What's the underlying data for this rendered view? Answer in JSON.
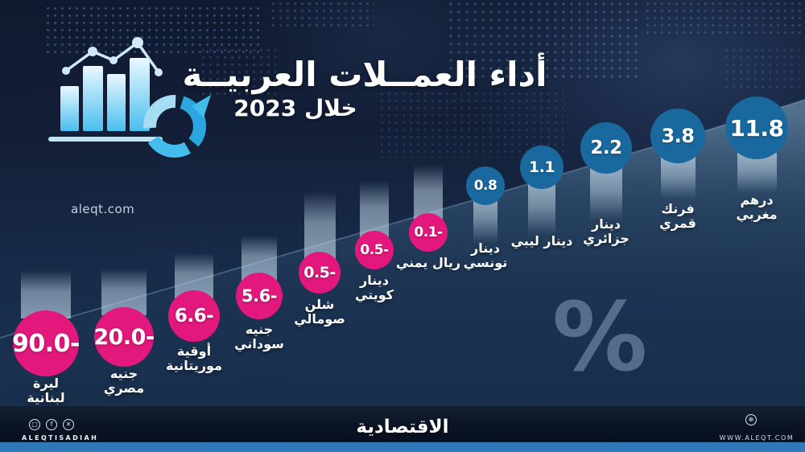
{
  "header": {
    "title": "أداء العمــلات العربيــة",
    "subtitle": "خلال 2023",
    "watermark": "aleqt.com"
  },
  "chart_data": {
    "type": "bar",
    "title": "أداء العملات العربية خلال 2023",
    "unit": "%",
    "categories": [
      "ليرة لبنانية",
      "جنيه مصري",
      "أوقية موريتانية",
      "جنيه سوداني",
      "شلن صومالي",
      "دينار كويتي",
      "ريال يمني",
      "دينار تونسي",
      "دينار ليبي",
      "دينار جزائري",
      "فرنك قمري",
      "درهم مغربي"
    ],
    "values": [
      -90.0,
      -20.0,
      -6.6,
      -5.6,
      -0.5,
      -0.5,
      -0.1,
      0.8,
      1.1,
      2.2,
      3.8,
      11.8
    ],
    "display_values": [
      "90.0-",
      "20.0-",
      "6.6-",
      "5.6-",
      "0.5-",
      "0.5-",
      "0.1-",
      "0.8",
      "1.1",
      "2.2",
      "3.8",
      "11.8"
    ],
    "negative_color": "#e2187d",
    "positive_color": "#19699f",
    "legend": "none",
    "grid": false
  },
  "footer": {
    "brand_ar": "الاقتصادية",
    "brand_en": "ALEQTISADIAH",
    "website": "WWW.ALEQT.COM",
    "social": [
      "instagram",
      "facebook",
      "x"
    ]
  }
}
